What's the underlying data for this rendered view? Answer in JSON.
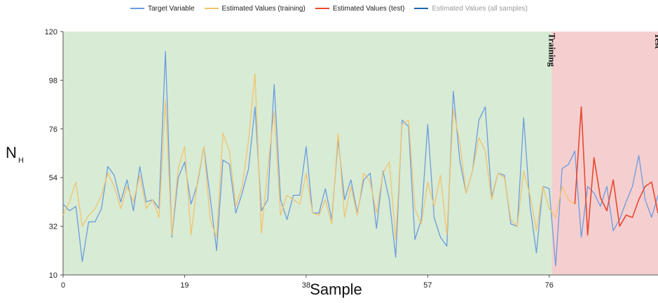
{
  "chart_data": {
    "type": "line",
    "xlabel": "Sample",
    "ylabel": "N",
    "ylabel_sub": "H",
    "xlim": [
      0,
      93
    ],
    "ylim": [
      10,
      120
    ],
    "xticks": [
      0,
      19,
      38,
      57,
      76
    ],
    "yticks": [
      10,
      32,
      54,
      76,
      98,
      120
    ],
    "grid": false,
    "legend_position": "top-center",
    "colors": {
      "training_bg": "#d8ebd4",
      "test_bg": "#f5cfcf",
      "target": "#6b9be0",
      "est_training": "#f2c36e",
      "est_test": "#e8472e",
      "est_all": "#2266aa"
    },
    "regions": [
      {
        "label": "Training",
        "start": 0,
        "end": 76.4
      },
      {
        "label": "Test",
        "start": 76.4,
        "end": 93
      }
    ],
    "legend": [
      {
        "name": "Target Variable",
        "color": "#6b9be0",
        "faded": false
      },
      {
        "name": "Estimated Values (training)",
        "color": "#f2c36e",
        "faded": false
      },
      {
        "name": "Estimated Values (test)",
        "color": "#e8472e",
        "faded": false
      },
      {
        "name": "Estimated Values (all samples)",
        "color": "#2266aa",
        "faded": true
      }
    ],
    "series": [
      {
        "name": "Target Variable",
        "x": [
          0,
          1,
          2,
          3,
          4,
          5,
          6,
          7,
          8,
          9,
          10,
          11,
          12,
          13,
          14,
          15,
          16,
          17,
          18,
          19,
          20,
          21,
          22,
          23,
          24,
          25,
          26,
          27,
          28,
          29,
          30,
          31,
          32,
          33,
          34,
          35,
          36,
          37,
          38,
          39,
          40,
          41,
          42,
          43,
          44,
          45,
          46,
          47,
          48,
          49,
          50,
          51,
          52,
          53,
          54,
          55,
          56,
          57,
          58,
          59,
          60,
          61,
          62,
          63,
          64,
          65,
          66,
          67,
          68,
          69,
          70,
          71,
          72,
          73,
          74,
          75,
          76,
          77,
          78,
          79,
          80,
          81,
          82,
          83,
          84,
          85,
          86,
          87,
          88,
          89,
          90,
          91,
          92,
          93
        ],
        "y": [
          42,
          39,
          41,
          16,
          34,
          34,
          40,
          59,
          55,
          43,
          53,
          39,
          59,
          43,
          44,
          40,
          111,
          27,
          54,
          61,
          42,
          51,
          68,
          45,
          21,
          62,
          60,
          38,
          47,
          58,
          86,
          39,
          44,
          96,
          44,
          35,
          46,
          46,
          68,
          38,
          38,
          49,
          35,
          71,
          44,
          53,
          38,
          53,
          56,
          31,
          57,
          44,
          18,
          80,
          77,
          26,
          35,
          78,
          36,
          27,
          23,
          93,
          62,
          47,
          57,
          80,
          86,
          45,
          56,
          55,
          33,
          32,
          81,
          41,
          20,
          50,
          49,
          14,
          58,
          60,
          66,
          27,
          50,
          47,
          41,
          50,
          30,
          35,
          43,
          50,
          64,
          44,
          36,
          46
        ],
        "color": "#6b9be0"
      },
      {
        "name": "Estimated Values (training)",
        "x": [
          0,
          1,
          2,
          3,
          4,
          5,
          6,
          7,
          8,
          9,
          10,
          11,
          12,
          13,
          14,
          15,
          16,
          17,
          18,
          19,
          20,
          21,
          22,
          23,
          24,
          25,
          26,
          27,
          28,
          29,
          30,
          31,
          32,
          33,
          34,
          35,
          36,
          37,
          38,
          39,
          40,
          41,
          42,
          43,
          44,
          45,
          46,
          47,
          48,
          49,
          50,
          51,
          52,
          53,
          54,
          55,
          56,
          57,
          58,
          59,
          60,
          61,
          62,
          63,
          64,
          65,
          66,
          67,
          68,
          69,
          70,
          71,
          72,
          73,
          74,
          75,
          76,
          77,
          78,
          79,
          80
        ],
        "y": [
          37,
          43,
          52,
          32,
          37,
          40,
          46,
          56,
          50,
          40,
          50,
          43,
          55,
          40,
          44,
          36,
          89,
          28,
          58,
          68,
          28,
          52,
          68,
          35,
          27,
          74,
          66,
          41,
          50,
          71,
          101,
          29,
          58,
          84,
          37,
          46,
          44,
          42,
          56,
          38,
          37,
          44,
          33,
          74,
          36,
          50,
          37,
          56,
          52,
          38,
          56,
          61,
          26,
          78,
          80,
          40,
          33,
          52,
          41,
          55,
          28,
          85,
          70,
          47,
          57,
          72,
          66,
          44,
          56,
          54,
          35,
          32,
          57,
          46,
          30,
          50,
          40,
          36,
          50,
          44,
          42
        ],
        "color": "#f2c36e"
      },
      {
        "name": "Estimated Values (test)",
        "x": [
          80,
          81,
          82,
          83,
          84,
          85,
          86,
          87,
          88,
          89,
          90,
          91,
          92,
          93
        ],
        "y": [
          42,
          86,
          28,
          63,
          45,
          39,
          53,
          32,
          37,
          36,
          44,
          50,
          52,
          38
        ],
        "color": "#e8472e"
      }
    ]
  }
}
